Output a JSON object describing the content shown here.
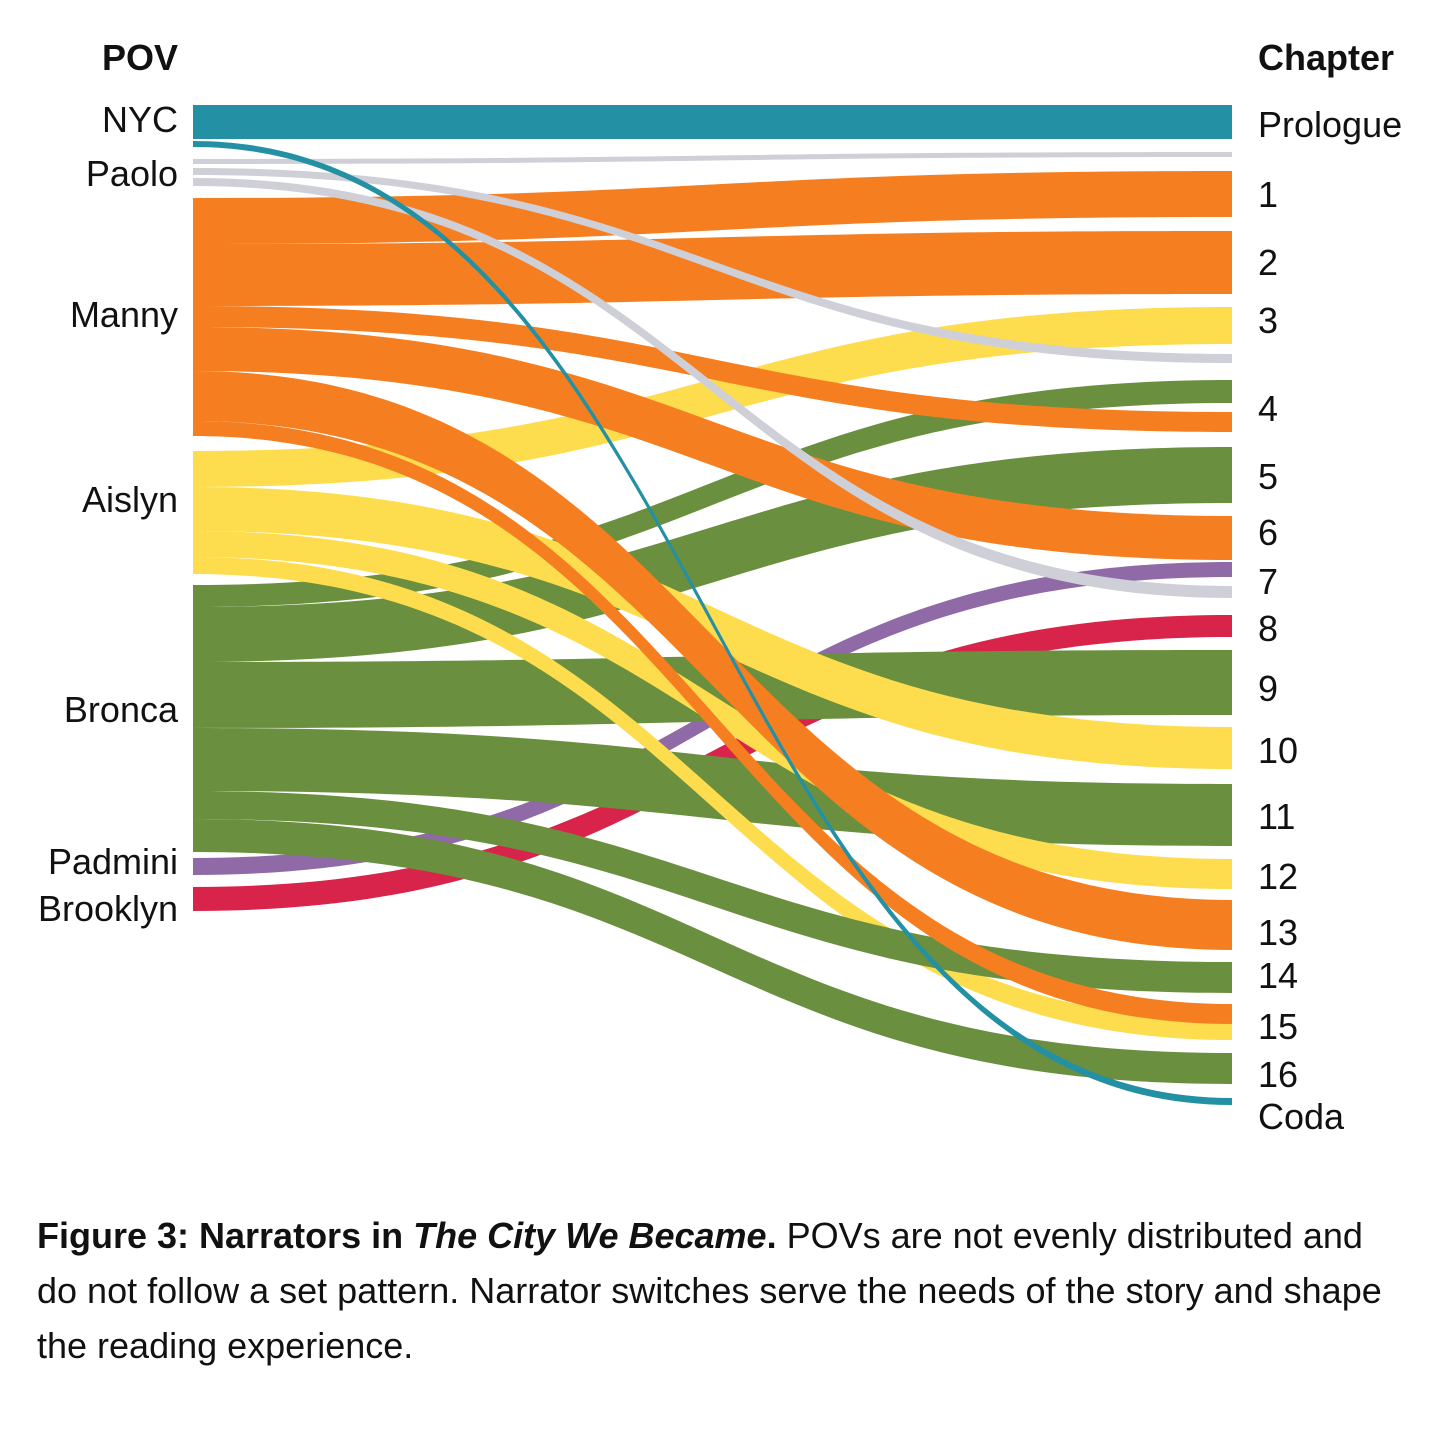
{
  "chart_data": {
    "type": "sankey",
    "left_title": "POV",
    "right_title": "Chapter",
    "colors": {
      "NYC": "#2490a4",
      "Paolo": "#cfcfd8",
      "Manny": "#f57f20",
      "Aislyn": "#fddc4e",
      "Bronca": "#6a8f3e",
      "Padmini": "#8f6aa6",
      "Brooklyn": "#d8234a"
    },
    "povs": [
      "NYC",
      "Paolo",
      "Manny",
      "Aislyn",
      "Bronca",
      "Padmini",
      "Brooklyn"
    ],
    "chapters": [
      "Prologue",
      "1",
      "2",
      "3",
      "4",
      "5",
      "6",
      "7",
      "8",
      "9",
      "10",
      "11",
      "12",
      "13",
      "14",
      "15",
      "16",
      "Coda"
    ],
    "flows": [
      {
        "pov": "NYC",
        "chapter": "Prologue"
      },
      {
        "pov": "NYC",
        "chapter": "Coda"
      },
      {
        "pov": "Paolo",
        "chapter": "Prologue"
      },
      {
        "pov": "Paolo",
        "chapter": "3"
      },
      {
        "pov": "Paolo",
        "chapter": "7"
      },
      {
        "pov": "Manny",
        "chapter": "1"
      },
      {
        "pov": "Manny",
        "chapter": "2"
      },
      {
        "pov": "Manny",
        "chapter": "4"
      },
      {
        "pov": "Manny",
        "chapter": "6"
      },
      {
        "pov": "Manny",
        "chapter": "13"
      },
      {
        "pov": "Manny",
        "chapter": "15"
      },
      {
        "pov": "Aislyn",
        "chapter": "3"
      },
      {
        "pov": "Aislyn",
        "chapter": "10"
      },
      {
        "pov": "Aislyn",
        "chapter": "12"
      },
      {
        "pov": "Aislyn",
        "chapter": "15"
      },
      {
        "pov": "Bronca",
        "chapter": "4"
      },
      {
        "pov": "Bronca",
        "chapter": "5"
      },
      {
        "pov": "Bronca",
        "chapter": "9"
      },
      {
        "pov": "Bronca",
        "chapter": "11"
      },
      {
        "pov": "Bronca",
        "chapter": "14"
      },
      {
        "pov": "Bronca",
        "chapter": "16"
      },
      {
        "pov": "Padmini",
        "chapter": "7"
      },
      {
        "pov": "Brooklyn",
        "chapter": "8"
      }
    ]
  },
  "caption": {
    "bold_prefix": "Figure 3: Narrators in ",
    "bold_italic_title": "The City We Became",
    "bold_suffix": ".",
    "text": " POVs are not evenly distributed and do not follow a set pattern. Narrator switches serve the needs of the story and shape the reading experience."
  }
}
